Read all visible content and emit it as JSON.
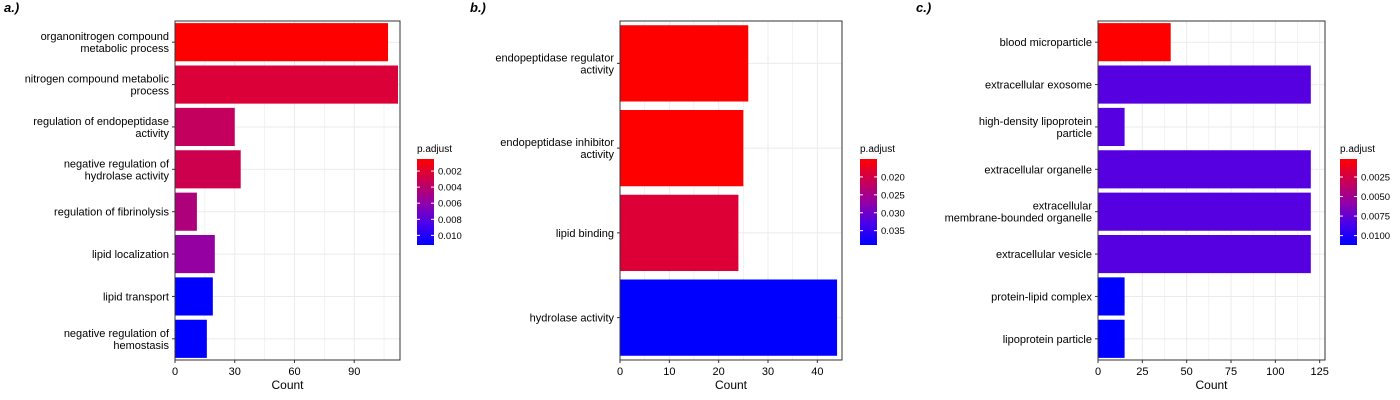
{
  "chart_data": [
    {
      "type": "bar",
      "orientation": "horizontal",
      "panel_label": "a.)",
      "title": "",
      "xlabel": "Count",
      "ylabel": "",
      "xlim": [
        0,
        113
      ],
      "x_ticks": [
        0,
        30,
        60,
        90
      ],
      "grid": true,
      "legend_position": "right",
      "categories": [
        [
          "organonitrogen compound",
          "metabolic process"
        ],
        [
          "nitrogen compound metabolic",
          "process"
        ],
        [
          "regulation of endopeptidase",
          "activity"
        ],
        [
          "negative regulation of",
          "hydrolase activity"
        ],
        [
          "regulation of fibrinolysis"
        ],
        [
          "lipid localization"
        ],
        [
          "lipid transport"
        ],
        [
          "negative regulation of",
          "hemostasis"
        ]
      ],
      "values": [
        107,
        112,
        30,
        33,
        11,
        20,
        19,
        16
      ],
      "p_adjust": [
        0.0005,
        0.0023,
        0.0035,
        0.003,
        0.0045,
        0.0058,
        0.0112,
        0.0112
      ],
      "colorbar": {
        "title": "p.adjust",
        "min": 0.0005,
        "max": 0.0112,
        "ticks": [
          0.002,
          0.004,
          0.006,
          0.008,
          0.01
        ],
        "tick_labels": [
          "0.002",
          "0.004",
          "0.006",
          "0.008",
          "0.010"
        ]
      }
    },
    {
      "type": "bar",
      "orientation": "horizontal",
      "panel_label": "b.)",
      "title": "",
      "xlabel": "Count",
      "ylabel": "",
      "xlim": [
        0,
        45
      ],
      "x_ticks": [
        0,
        10,
        20,
        30,
        40
      ],
      "grid": true,
      "legend_position": "right",
      "categories": [
        [
          "endopeptidase regulator",
          "activity"
        ],
        [
          "endopeptidase inhibitor",
          "activity"
        ],
        [
          "lipid binding"
        ],
        [
          "hydrolase activity"
        ]
      ],
      "values": [
        26,
        25,
        24,
        44
      ],
      "p_adjust": [
        0.015,
        0.015,
        0.019,
        0.039
      ],
      "colorbar": {
        "title": "p.adjust",
        "min": 0.015,
        "max": 0.039,
        "ticks": [
          0.02,
          0.025,
          0.03,
          0.035
        ],
        "tick_labels": [
          "0.020",
          "0.025",
          "0.030",
          "0.035"
        ]
      }
    },
    {
      "type": "bar",
      "orientation": "horizontal",
      "panel_label": "c.)",
      "title": "",
      "xlabel": "Count",
      "ylabel": "",
      "xlim": [
        0,
        128
      ],
      "x_ticks": [
        0,
        25,
        50,
        75,
        100,
        125
      ],
      "grid": true,
      "legend_position": "right",
      "categories": [
        [
          "blood microparticle"
        ],
        [
          "extracellular exosome"
        ],
        [
          "high-density lipoprotein",
          "particle"
        ],
        [
          "extracellular organelle"
        ],
        [
          "extracellular",
          "membrane-bounded organelle"
        ],
        [
          "extracellular vesicle"
        ],
        [
          "protein-lipid complex"
        ],
        [
          "lipoprotein particle"
        ]
      ],
      "values": [
        41,
        120,
        15,
        120,
        120,
        120,
        15,
        15
      ],
      "p_adjust": [
        0.0002,
        0.008,
        0.008,
        0.008,
        0.008,
        0.008,
        0.0112,
        0.0112
      ],
      "colorbar": {
        "title": "p.adjust",
        "min": 0.0002,
        "max": 0.0112,
        "ticks": [
          0.0025,
          0.005,
          0.0075,
          0.01
        ],
        "tick_labels": [
          "0.0025",
          "0.0050",
          "0.0075",
          "0.0100"
        ]
      }
    }
  ],
  "colors": {
    "low_p": "#ff0000",
    "high_p": "#0000ff",
    "grid": "#ebebeb",
    "axis": "#333333",
    "text": "#000000"
  }
}
